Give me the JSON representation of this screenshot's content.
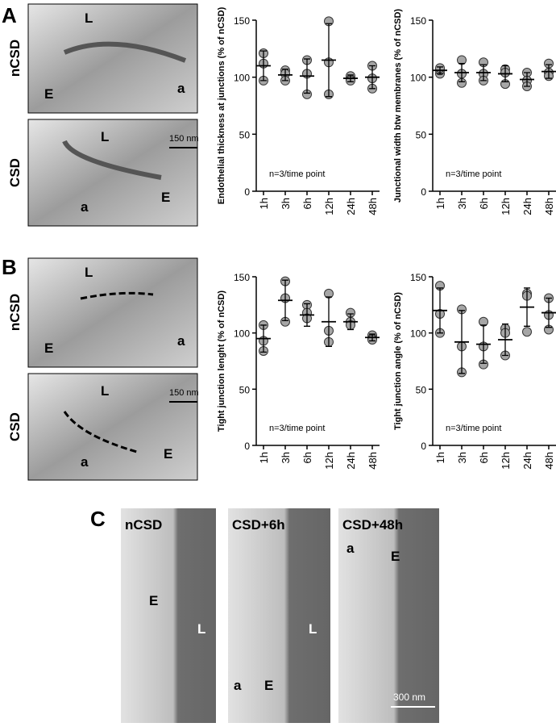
{
  "chart_data": [
    {
      "type": "dotplot",
      "y_label": "Endothelial thickness at junctions (% of nCSD)",
      "annotation": "n=3/time point",
      "categories": [
        "1h",
        "3h",
        "6h",
        "12h",
        "24h",
        "48h"
      ],
      "points": [
        [
          121,
          112,
          97
        ],
        [
          106,
          103,
          97
        ],
        [
          115,
          103,
          85
        ],
        [
          149,
          113,
          85
        ],
        [
          101,
          98,
          97
        ],
        [
          110,
          99,
          90
        ]
      ],
      "means": [
        110,
        102,
        101,
        115,
        99,
        100
      ],
      "errors": [
        13,
        5,
        15,
        32,
        3,
        10
      ],
      "color": "#a6a6a6",
      "ylim": [
        0,
        150
      ],
      "yticks": [
        0,
        50,
        100,
        150
      ]
    },
    {
      "type": "dotplot",
      "y_label": "Junctional width btw membranes (% of nCSD)",
      "annotation": "n=3/time point",
      "categories": [
        "1h",
        "3h",
        "6h",
        "12h",
        "24h",
        "48h"
      ],
      "points": [
        [
          103,
          106,
          108
        ],
        [
          115,
          103,
          95
        ],
        [
          113,
          103,
          97
        ],
        [
          107,
          104,
          94
        ],
        [
          104,
          97,
          92
        ],
        [
          112,
          104,
          101
        ]
      ],
      "means": [
        106,
        104,
        104,
        103,
        98,
        105
      ],
      "errors": [
        3,
        8,
        7,
        7,
        6,
        6
      ],
      "color": "#a6a6a6",
      "ylim": [
        0,
        150
      ],
      "yticks": [
        0,
        50,
        100,
        150
      ]
    },
    {
      "type": "dotplot",
      "y_label": "Tight junction lenght (% of nCSD)",
      "annotation": "n=3/time point",
      "categories": [
        "1h",
        "3h",
        "6h",
        "12h",
        "24h",
        "48h"
      ],
      "points": [
        [
          107,
          93,
          84
        ],
        [
          146,
          131,
          110
        ],
        [
          125,
          118,
          113
        ],
        [
          135,
          102,
          92
        ],
        [
          118,
          110,
          107
        ],
        [
          98,
          95,
          94
        ]
      ],
      "means": [
        95,
        129,
        116,
        110,
        110,
        96
      ],
      "errors": [
        12,
        18,
        10,
        22,
        7,
        3
      ],
      "color": "#a6a6a6",
      "ylim": [
        0,
        150
      ],
      "yticks": [
        0,
        50,
        100,
        150
      ]
    },
    {
      "type": "dotplot",
      "y_label": "Tight junction angle (% of nCSD)",
      "annotation": "n=3/time point",
      "categories": [
        "1h",
        "3h",
        "6h",
        "12h",
        "24h",
        "48h"
      ],
      "points": [
        [
          142,
          117,
          100
        ],
        [
          121,
          88,
          65
        ],
        [
          110,
          88,
          72
        ],
        [
          104,
          100,
          80
        ],
        [
          135,
          133,
          101
        ],
        [
          131,
          116,
          103
        ]
      ],
      "means": [
        120,
        92,
        90,
        94,
        123,
        118
      ],
      "errors": [
        20,
        28,
        17,
        14,
        17,
        13
      ],
      "color": "#a6a6a6",
      "ylim": [
        0,
        150
      ],
      "yticks": [
        0,
        50,
        100,
        150
      ]
    }
  ],
  "panels": {
    "A": "A",
    "B": "B",
    "C": "C",
    "row_top": "nCSD",
    "row_bottom": "CSD",
    "lumen": "L",
    "endo": "E",
    "astro": "a",
    "scale_small": "150 nm",
    "scale_large": "300 nm",
    "c1": "nCSD",
    "c2": "CSD+6h",
    "c3": "CSD+48h"
  }
}
